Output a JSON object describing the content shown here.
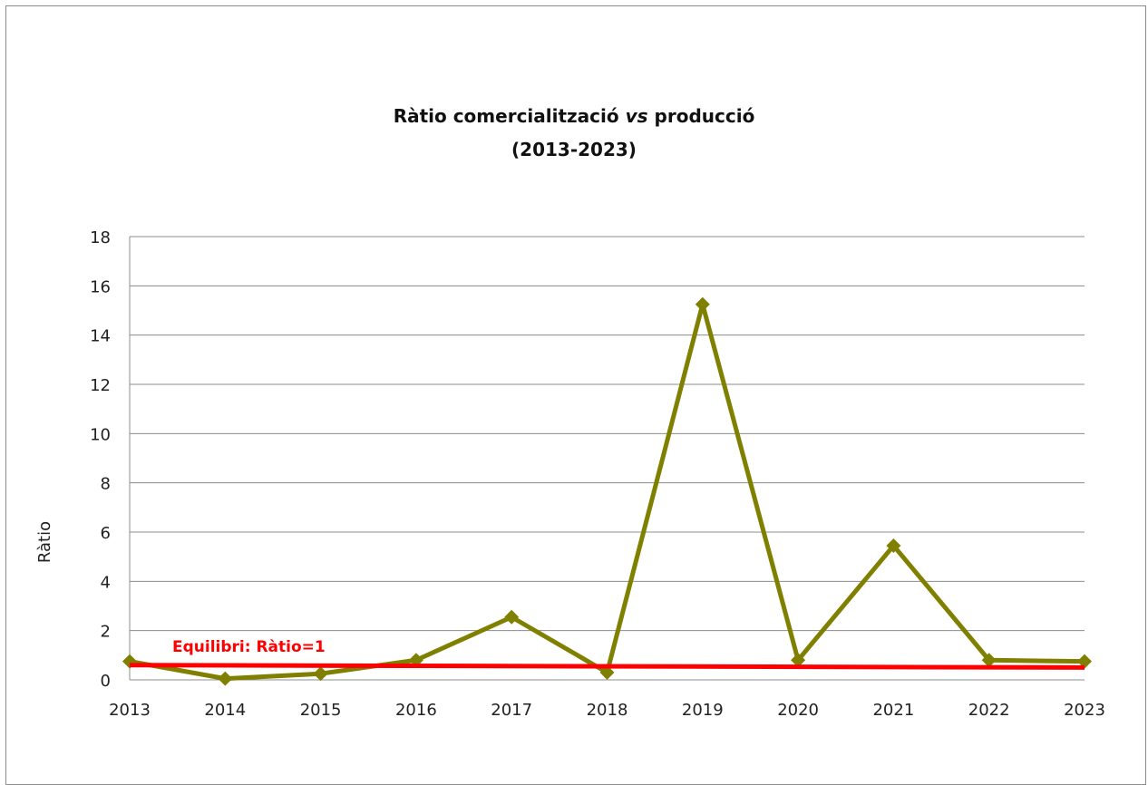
{
  "chart_data": {
    "type": "line",
    "title": "Ràtio comercialització vs producció",
    "title_parts": {
      "prefix": "Ràtio comercialització ",
      "italic": "vs",
      "suffix": " producció"
    },
    "subtitle": "(2013-2023)",
    "xlabel": "",
    "ylabel": "Ràtio",
    "ylim": [
      0,
      18
    ],
    "yticks": [
      0,
      2,
      4,
      6,
      8,
      10,
      12,
      14,
      16,
      18
    ],
    "categories": [
      "2013",
      "2014",
      "2015",
      "2016",
      "2017",
      "2018",
      "2019",
      "2020",
      "2021",
      "2022",
      "2023"
    ],
    "series": [
      {
        "color": "#7f7f00",
        "marker": "diamond",
        "values": [
          0.75,
          0.05,
          0.25,
          0.8,
          2.55,
          0.3,
          15.25,
          0.8,
          5.45,
          0.8,
          0.75
        ]
      }
    ],
    "reference_line": {
      "label": "Equilibri: Ràtio=1",
      "color": "#ff0000",
      "values": [
        0.6,
        0.5
      ]
    },
    "grid": true
  }
}
